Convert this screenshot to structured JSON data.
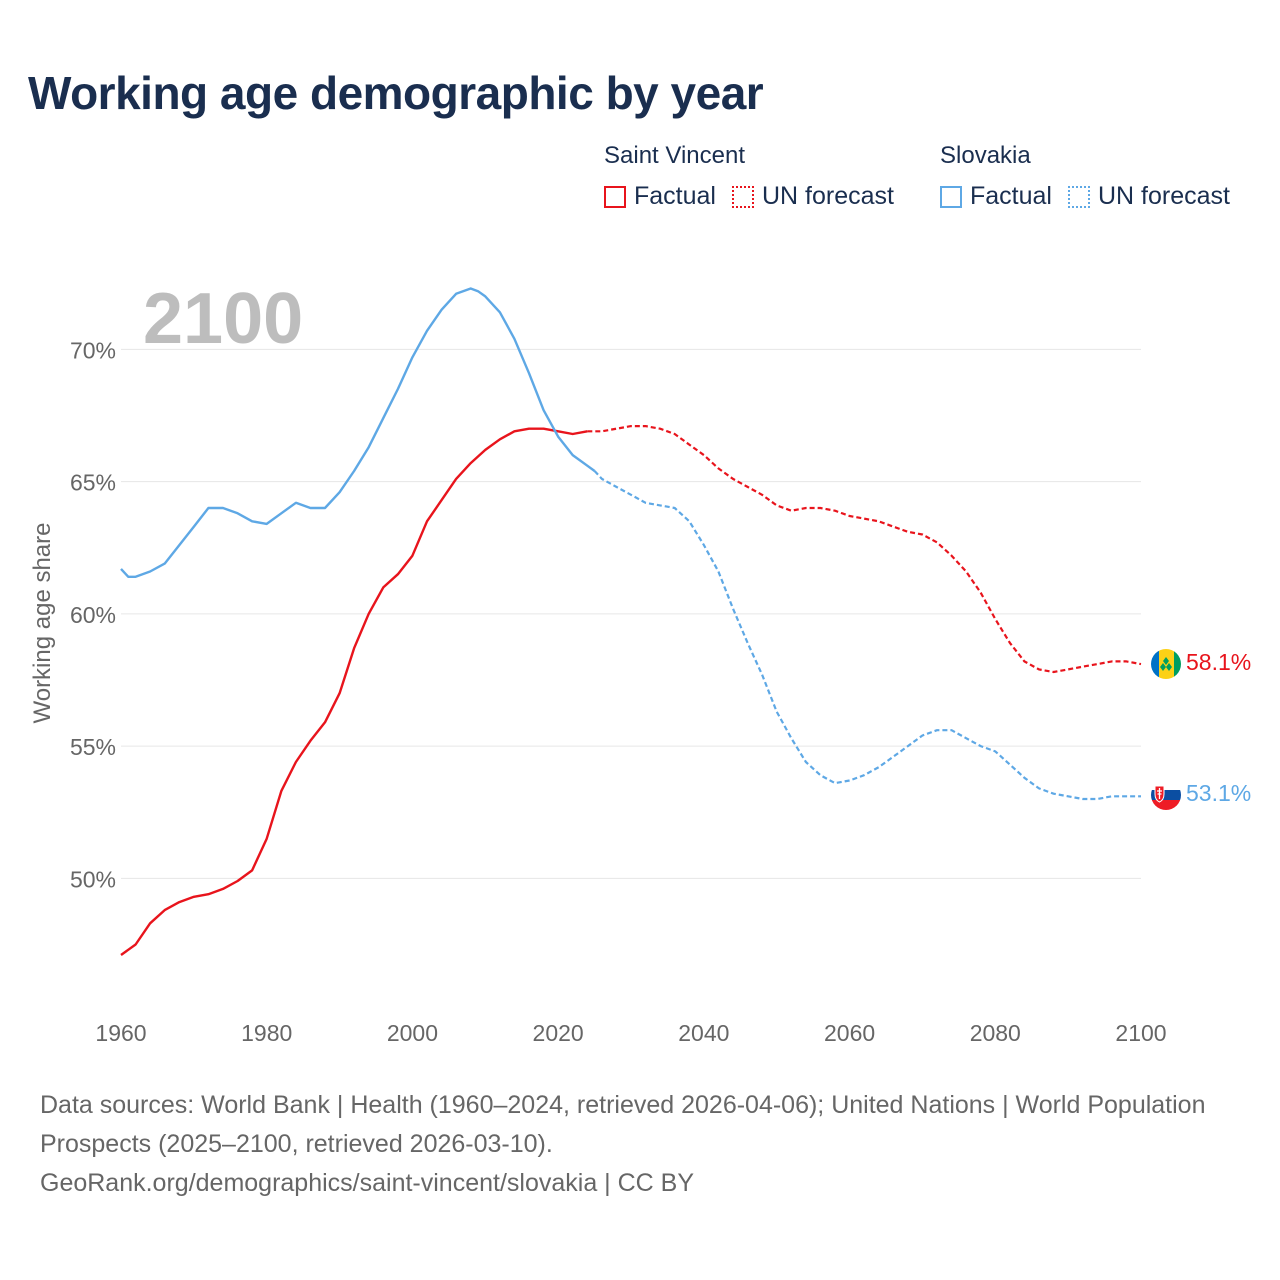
{
  "colors": {
    "saint_vincent": "#e8141c",
    "slovakia": "#5ea8e5",
    "title": "#1a2e4f"
  },
  "legend": {
    "groups": [
      {
        "name": "Saint Vincent",
        "factual_label": "Factual",
        "forecast_label": "UN forecast"
      },
      {
        "name": "Slovakia",
        "factual_label": "Factual",
        "forecast_label": "UN forecast"
      }
    ]
  },
  "footer": {
    "line1": "Data sources: World Bank | Health (1960–2024, retrieved 2026-04-06); United Nations | World Population Prospects (2025–2100, retrieved 2026-03-10).",
    "line2": "GeoRank.org/demographics/saint-vincent/slovakia | CC BY"
  },
  "chart_data": {
    "type": "line",
    "title": "Working age demographic by year",
    "year_label": "2100",
    "xlabel": "",
    "ylabel": "Working age share",
    "xlim": [
      1960,
      2100
    ],
    "ylim": [
      45.4,
      73.0
    ],
    "x_ticks": [
      "1960",
      "1980",
      "2000",
      "2020",
      "2040",
      "2060",
      "2080",
      "2100"
    ],
    "y_ticks": [
      {
        "value": 50,
        "label": "50%"
      },
      {
        "value": 55,
        "label": "55%"
      },
      {
        "value": 60,
        "label": "60%"
      },
      {
        "value": 65,
        "label": "65%"
      },
      {
        "value": 70,
        "label": "70%"
      }
    ],
    "grid": true,
    "series": [
      {
        "name": "Saint Vincent",
        "color": "#e8141c",
        "end_label": "58.1%",
        "flag_icon": "saint-vincent-flag-icon",
        "factual": {
          "x": [
            1960,
            1962,
            1964,
            1966,
            1968,
            1970,
            1972,
            1974,
            1976,
            1978,
            1980,
            1982,
            1984,
            1986,
            1988,
            1990,
            1992,
            1994,
            1996,
            1998,
            2000,
            2002,
            2004,
            2006,
            2008,
            2010,
            2012,
            2014,
            2016,
            2018,
            2020,
            2022,
            2024
          ],
          "y": [
            47.1,
            47.5,
            48.3,
            48.8,
            49.1,
            49.3,
            49.4,
            49.6,
            49.9,
            50.3,
            51.5,
            53.3,
            54.4,
            55.2,
            55.9,
            57.0,
            58.7,
            60.0,
            61.0,
            61.5,
            62.2,
            63.5,
            64.3,
            65.1,
            65.7,
            66.2,
            66.6,
            66.9,
            67.0,
            67.0,
            66.9,
            66.8,
            66.9
          ]
        },
        "forecast": {
          "x": [
            2024,
            2026,
            2028,
            2030,
            2032,
            2034,
            2036,
            2038,
            2040,
            2042,
            2044,
            2046,
            2048,
            2050,
            2052,
            2054,
            2056,
            2058,
            2060,
            2062,
            2064,
            2066,
            2068,
            2070,
            2072,
            2074,
            2076,
            2078,
            2080,
            2082,
            2084,
            2086,
            2088,
            2090,
            2092,
            2094,
            2096,
            2098,
            2100
          ],
          "y": [
            66.9,
            66.9,
            67.0,
            67.1,
            67.1,
            67.0,
            66.8,
            66.4,
            66.0,
            65.5,
            65.1,
            64.8,
            64.5,
            64.1,
            63.9,
            64.0,
            64.0,
            63.9,
            63.7,
            63.6,
            63.5,
            63.3,
            63.1,
            63.0,
            62.7,
            62.2,
            61.6,
            60.8,
            59.8,
            58.9,
            58.2,
            57.9,
            57.8,
            57.9,
            58.0,
            58.1,
            58.2,
            58.2,
            58.1
          ]
        }
      },
      {
        "name": "Slovakia",
        "color": "#5ea8e5",
        "end_label": "53.1%",
        "flag_icon": "slovakia-flag-icon",
        "factual": {
          "x": [
            1960,
            1961,
            1962,
            1964,
            1966,
            1968,
            1970,
            1972,
            1974,
            1976,
            1978,
            1980,
            1982,
            1984,
            1986,
            1988,
            1990,
            1992,
            1994,
            1996,
            1998,
            2000,
            2002,
            2004,
            2006,
            2008,
            2009,
            2010,
            2012,
            2014,
            2016,
            2018,
            2020,
            2022,
            2024,
            2025
          ],
          "y": [
            61.7,
            61.4,
            61.4,
            61.6,
            61.9,
            62.6,
            63.3,
            64.0,
            64.0,
            63.8,
            63.5,
            63.4,
            63.8,
            64.2,
            64.0,
            64.0,
            64.6,
            65.4,
            66.3,
            67.4,
            68.5,
            69.7,
            70.7,
            71.5,
            72.1,
            72.3,
            72.2,
            72.0,
            71.4,
            70.4,
            69.1,
            67.7,
            66.7,
            66.0,
            65.6,
            65.4
          ]
        },
        "forecast": {
          "x": [
            2025,
            2026,
            2028,
            2030,
            2032,
            2034,
            2036,
            2038,
            2040,
            2042,
            2044,
            2046,
            2048,
            2050,
            2052,
            2054,
            2056,
            2058,
            2060,
            2062,
            2064,
            2066,
            2068,
            2070,
            2072,
            2074,
            2076,
            2078,
            2080,
            2082,
            2084,
            2086,
            2088,
            2090,
            2092,
            2094,
            2096,
            2098,
            2100
          ],
          "y": [
            65.4,
            65.1,
            64.8,
            64.5,
            64.2,
            64.1,
            64.0,
            63.5,
            62.6,
            61.6,
            60.2,
            58.9,
            57.7,
            56.3,
            55.3,
            54.4,
            53.9,
            53.6,
            53.7,
            53.9,
            54.2,
            54.6,
            55.0,
            55.4,
            55.6,
            55.6,
            55.3,
            55.0,
            54.8,
            54.3,
            53.8,
            53.4,
            53.2,
            53.1,
            53.0,
            53.0,
            53.1,
            53.1,
            53.1
          ]
        }
      }
    ]
  }
}
